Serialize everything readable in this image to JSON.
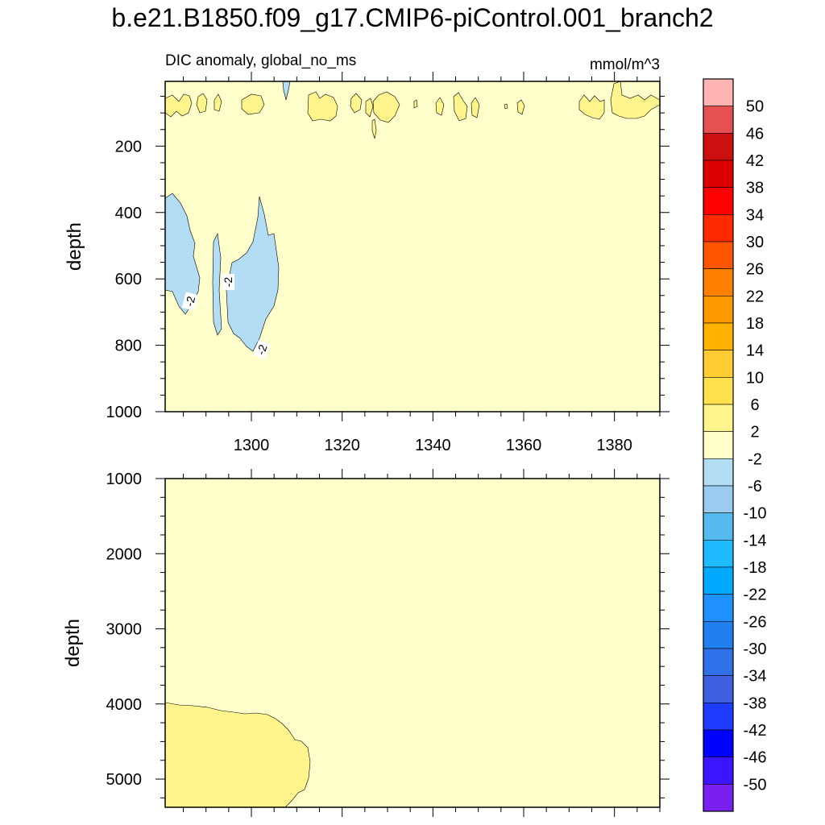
{
  "title": "b.e21.B1850.f09_g17.CMIP6-piControl.001_branch2",
  "chart_data": {
    "type": "contour",
    "panels": [
      {
        "name": "upper",
        "left_label": "DIC anomaly, global_no_ms",
        "right_label": "mmol/m^3",
        "ylabel": "depth",
        "xlim": [
          1281,
          1390
        ],
        "ylim": [
          1000,
          5
        ],
        "x_ticks": [
          1300,
          1320,
          1340,
          1360,
          1380
        ],
        "x_tick_labels": [
          "1300",
          "1320",
          "1340",
          "1360",
          "1380"
        ],
        "y_ticks": [
          200,
          400,
          600,
          800,
          1000
        ],
        "y_tick_labels": [
          "200",
          "400",
          "600",
          "800",
          "1000"
        ],
        "contour_labels": [
          {
            "text": "-2",
            "x": 1286.5,
            "y": 670
          },
          {
            "text": "-2",
            "x": 1293.5,
            "y": 610
          },
          {
            "text": "-2",
            "x": 1303,
            "y": 820
          }
        ]
      },
      {
        "name": "lower",
        "ylabel": "depth",
        "xlim": [
          1281,
          1390
        ],
        "ylim": [
          1000,
          5375
        ],
        "y_ticks": [
          1000,
          2000,
          3000,
          4000,
          5000
        ],
        "y_tick_labels": [
          "1000",
          "2000",
          "3000",
          "4000",
          "5000"
        ]
      }
    ],
    "colorbar": {
      "labels": [
        "50",
        "46",
        "42",
        "38",
        "34",
        "30",
        "26",
        "22",
        "18",
        "14",
        "10",
        "6",
        "2",
        "-2",
        "-6",
        "-10",
        "-14",
        "-18",
        "-22",
        "-26",
        "-30",
        "-34",
        "-38",
        "-42",
        "-46",
        "-50"
      ],
      "colors": [
        "#ffb3b3",
        "#e65050",
        "#cc1010",
        "#dd0000",
        "#ff0000",
        "#ff2a00",
        "#ff5500",
        "#ff7f00",
        "#ff9900",
        "#ffb300",
        "#ffcc33",
        "#ffe14d",
        "#fff58c",
        "#ffffcc",
        "#b3dcf5",
        "#99ccee",
        "#55bbee",
        "#1ebcff",
        "#00aaff",
        "#1e90ff",
        "#2080ee",
        "#3070e8",
        "#3f5fe0",
        "#1e3cff",
        "#0000ff",
        "#3c14ff",
        "#7a20ee"
      ]
    }
  }
}
